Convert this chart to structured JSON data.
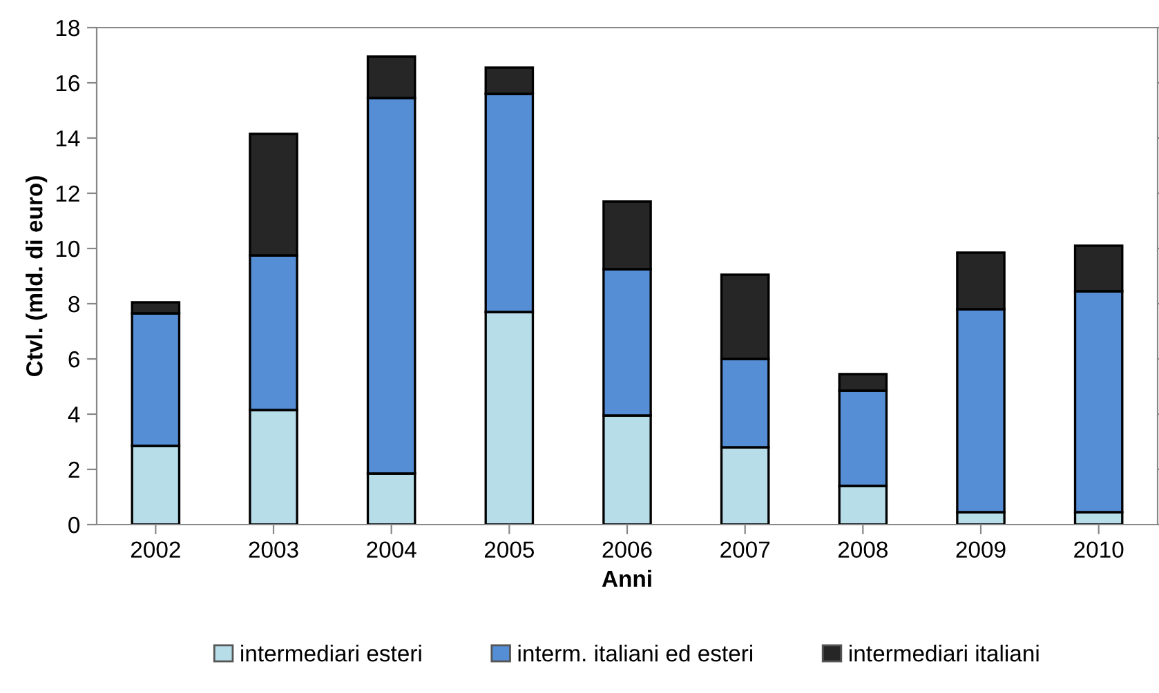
{
  "chart_data": {
    "type": "bar",
    "stacked": true,
    "xlabel": "Anni",
    "ylabel": "Ctvl. (mld. di euro)",
    "categories": [
      "2002",
      "2003",
      "2004",
      "2005",
      "2006",
      "2007",
      "2008",
      "2009",
      "2010"
    ],
    "series": [
      {
        "name": "intermediari esteri",
        "color": "#b7dde8",
        "values": [
          2.85,
          4.15,
          1.85,
          7.7,
          3.95,
          2.8,
          1.4,
          0.45,
          0.45
        ]
      },
      {
        "name": "interm. italiani ed esteri",
        "color": "#558ed5",
        "values": [
          4.8,
          5.6,
          13.6,
          7.9,
          5.3,
          3.2,
          3.45,
          7.35,
          8.0
        ]
      },
      {
        "name": "intermediari italiani",
        "color": "#262626",
        "values": [
          0.4,
          4.4,
          1.5,
          0.95,
          2.45,
          3.05,
          0.6,
          2.05,
          1.65
        ]
      }
    ],
    "ylim": [
      0,
      18
    ],
    "yticks": [
      0,
      2,
      4,
      6,
      8,
      10,
      12,
      14,
      16,
      18
    ],
    "grid": false,
    "legend": "bottom"
  }
}
